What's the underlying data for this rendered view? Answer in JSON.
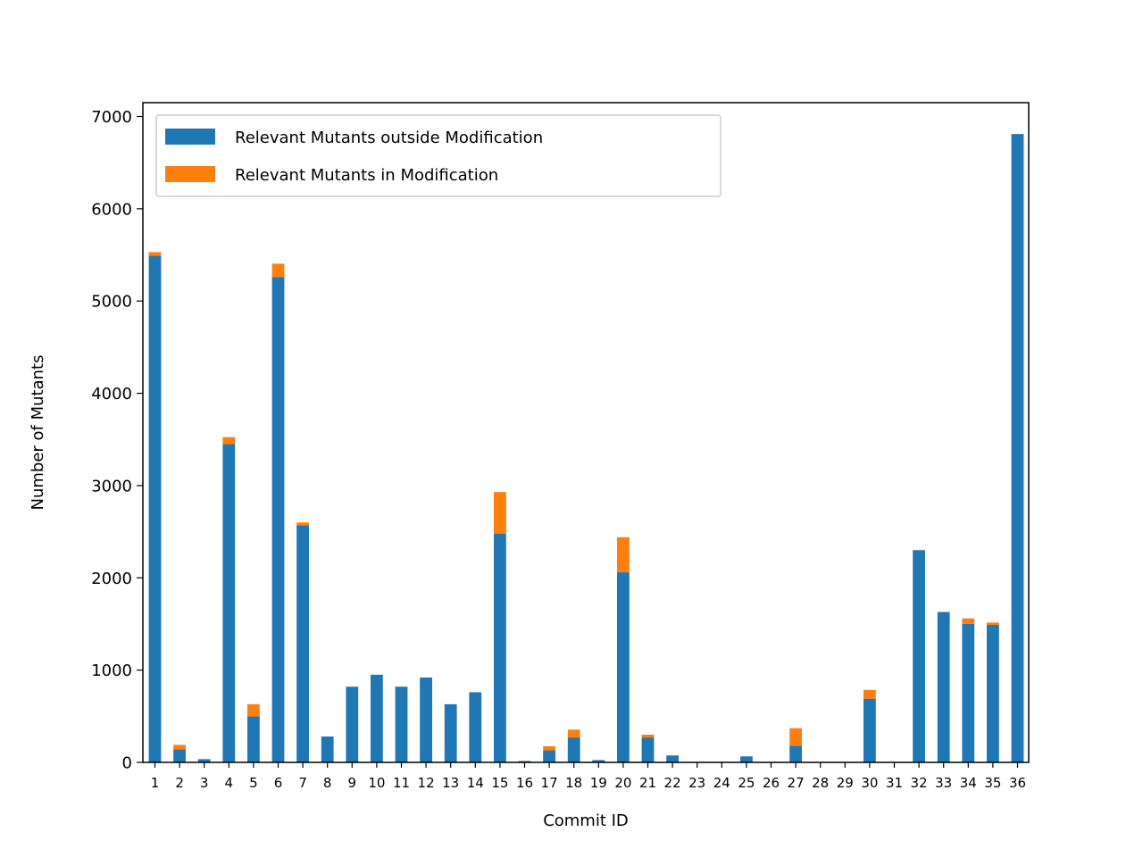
{
  "chart_data": {
    "type": "bar",
    "stacked": true,
    "xlabel": "Commit ID",
    "ylabel": "Number of Mutants",
    "ylim": [
      0,
      7150
    ],
    "yticks": [
      0,
      1000,
      2000,
      3000,
      4000,
      5000,
      6000,
      7000
    ],
    "categories": [
      "1",
      "2",
      "3",
      "4",
      "5",
      "6",
      "7",
      "8",
      "9",
      "10",
      "11",
      "12",
      "13",
      "14",
      "15",
      "16",
      "17",
      "18",
      "19",
      "20",
      "21",
      "22",
      "23",
      "24",
      "25",
      "26",
      "27",
      "28",
      "29",
      "30",
      "31",
      "32",
      "33",
      "34",
      "35",
      "36"
    ],
    "series": [
      {
        "name": "Relevant Mutants outside Modification",
        "color": "#1f77b4",
        "values": [
          5490,
          140,
          35,
          3450,
          500,
          5260,
          2570,
          280,
          820,
          950,
          820,
          920,
          630,
          760,
          2480,
          15,
          130,
          270,
          25,
          2060,
          270,
          75,
          0,
          0,
          65,
          0,
          180,
          0,
          0,
          690,
          0,
          2300,
          1630,
          1500,
          1490,
          6810
        ]
      },
      {
        "name": "Relevant Mutants in Modification",
        "color": "#ff7f0e",
        "values": [
          40,
          50,
          0,
          75,
          130,
          145,
          30,
          0,
          0,
          0,
          0,
          0,
          0,
          0,
          450,
          0,
          45,
          85,
          0,
          380,
          30,
          0,
          0,
          0,
          0,
          0,
          190,
          0,
          0,
          95,
          0,
          0,
          0,
          60,
          25,
          0
        ]
      }
    ],
    "legend_position": "upper-left"
  }
}
